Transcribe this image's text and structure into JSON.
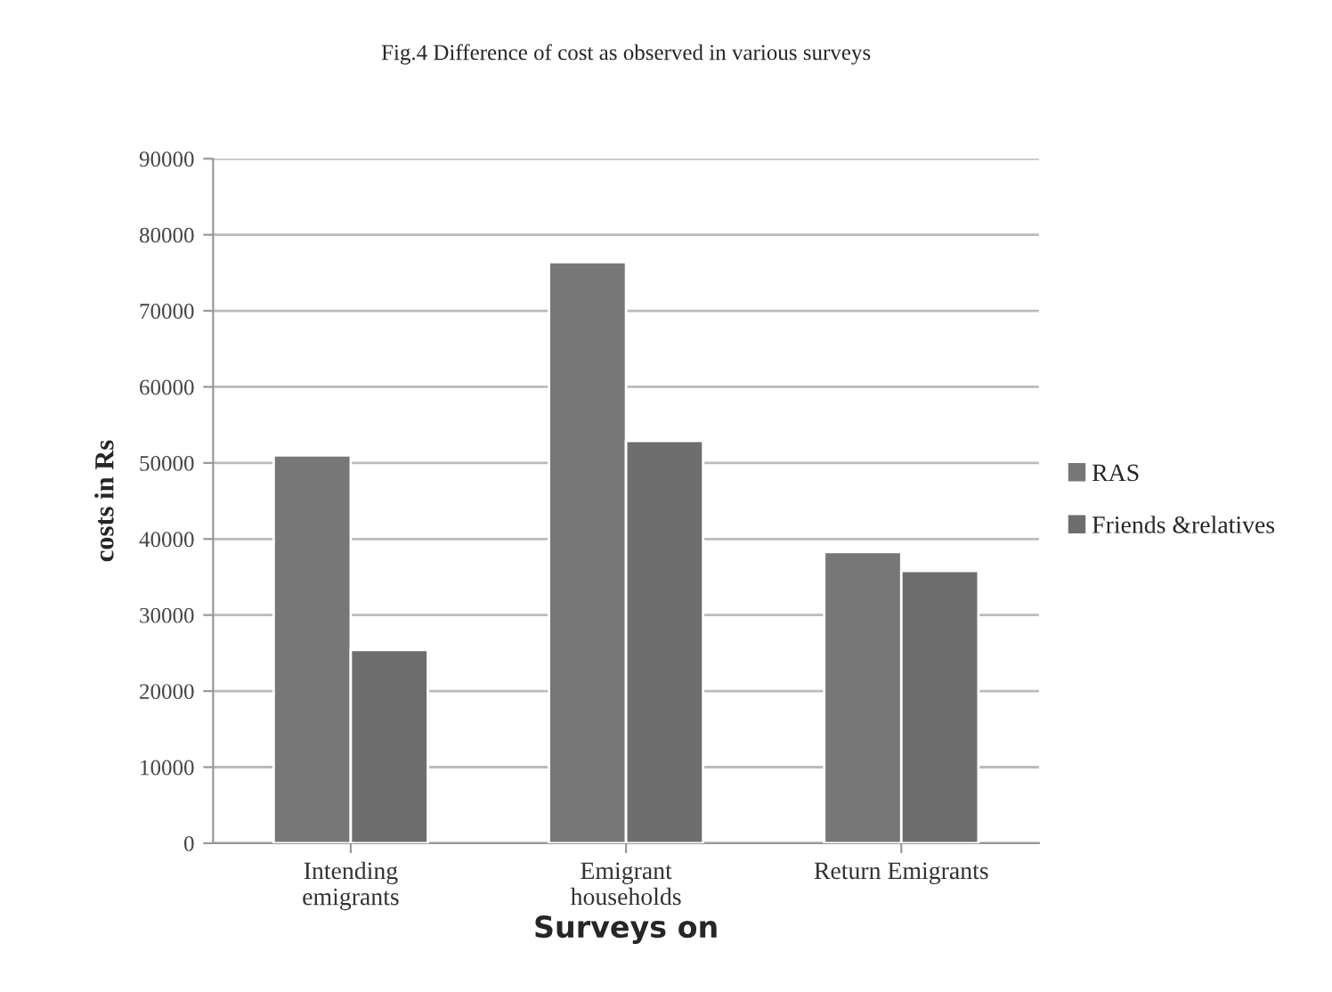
{
  "chart_data": {
    "type": "bar",
    "title": "Fig.4 Difference of cost as observed in various surveys",
    "xlabel": "Surveys on",
    "ylabel": "costs in Rs",
    "categories": [
      "Intending\nemigrants",
      "Emigrant\nhouseholds",
      "Return Emigrants"
    ],
    "series": [
      {
        "name": "RAS",
        "color": "#777777",
        "values": [
          51000,
          76400,
          38300
        ]
      },
      {
        "name": "Friends &relatives",
        "color": "#6e6e6e",
        "values": [
          25400,
          52900,
          35800
        ]
      }
    ],
    "ylim": [
      0,
      90000
    ],
    "yticks": [
      0,
      10000,
      20000,
      30000,
      40000,
      50000,
      60000,
      70000,
      80000,
      90000
    ],
    "grid": "y",
    "legend": "right"
  }
}
